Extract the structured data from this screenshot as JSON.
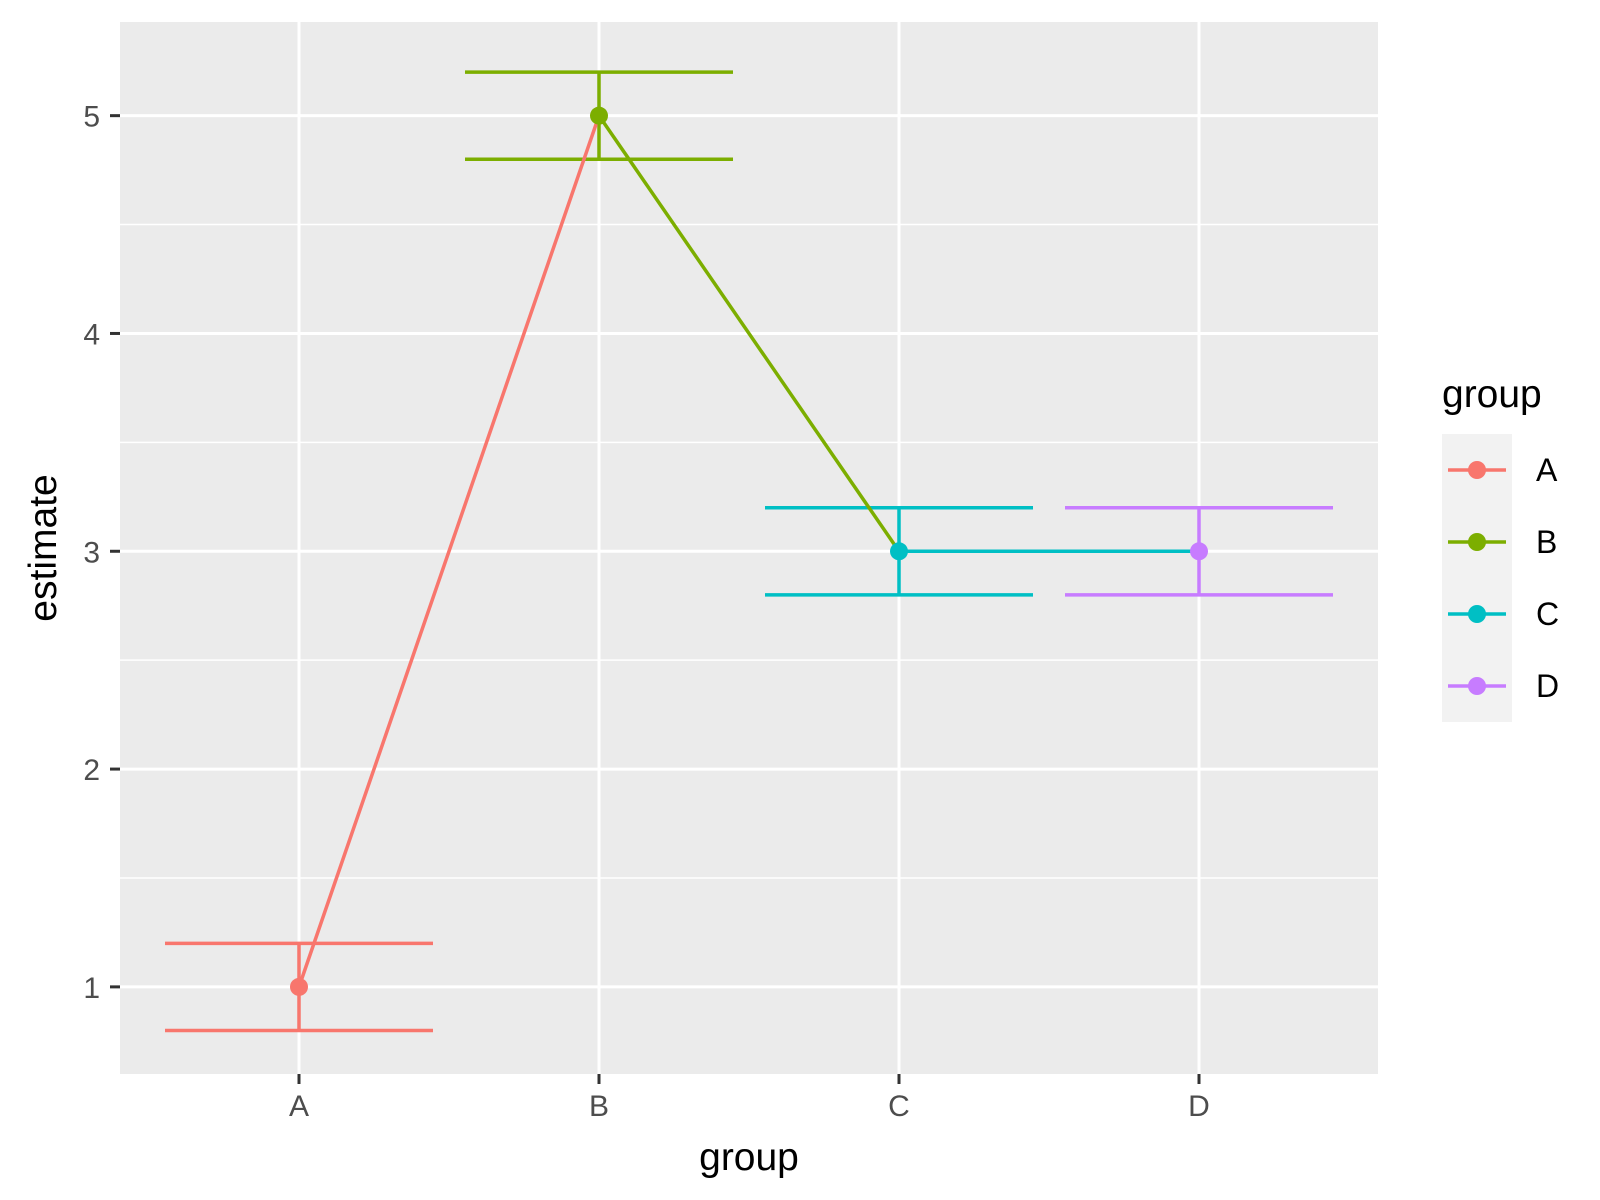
{
  "chart_data": {
    "type": "line",
    "title": "",
    "xlabel": "group",
    "ylabel": "estimate",
    "categories": [
      "A",
      "B",
      "C",
      "D"
    ],
    "ylim": [
      0.6,
      5.43
    ],
    "yticks": [
      1,
      2,
      3,
      4,
      5
    ],
    "grid": true,
    "legend": {
      "title": "group",
      "placement": "right",
      "entries": [
        "A",
        "B",
        "C",
        "D"
      ]
    },
    "series": [
      {
        "name": "A",
        "color": "#F8766D",
        "x": "A",
        "estimate": 1,
        "lower": 0.8,
        "upper": 1.2
      },
      {
        "name": "B",
        "color": "#7CAE00",
        "x": "B",
        "estimate": 5,
        "lower": 4.8,
        "upper": 5.2
      },
      {
        "name": "C",
        "color": "#00BFC4",
        "x": "C",
        "estimate": 3,
        "lower": 2.8,
        "upper": 3.2
      },
      {
        "name": "D",
        "color": "#C77CFF",
        "x": "D",
        "estimate": 3,
        "lower": 2.8,
        "upper": 3.2
      }
    ],
    "colors": {
      "panel_background": "#EBEBEB",
      "grid_line": "#FFFFFF",
      "tick_text": "#4D4D4D",
      "tick_mark": "#333333",
      "legend_key_background": "#F2F2F2"
    }
  }
}
